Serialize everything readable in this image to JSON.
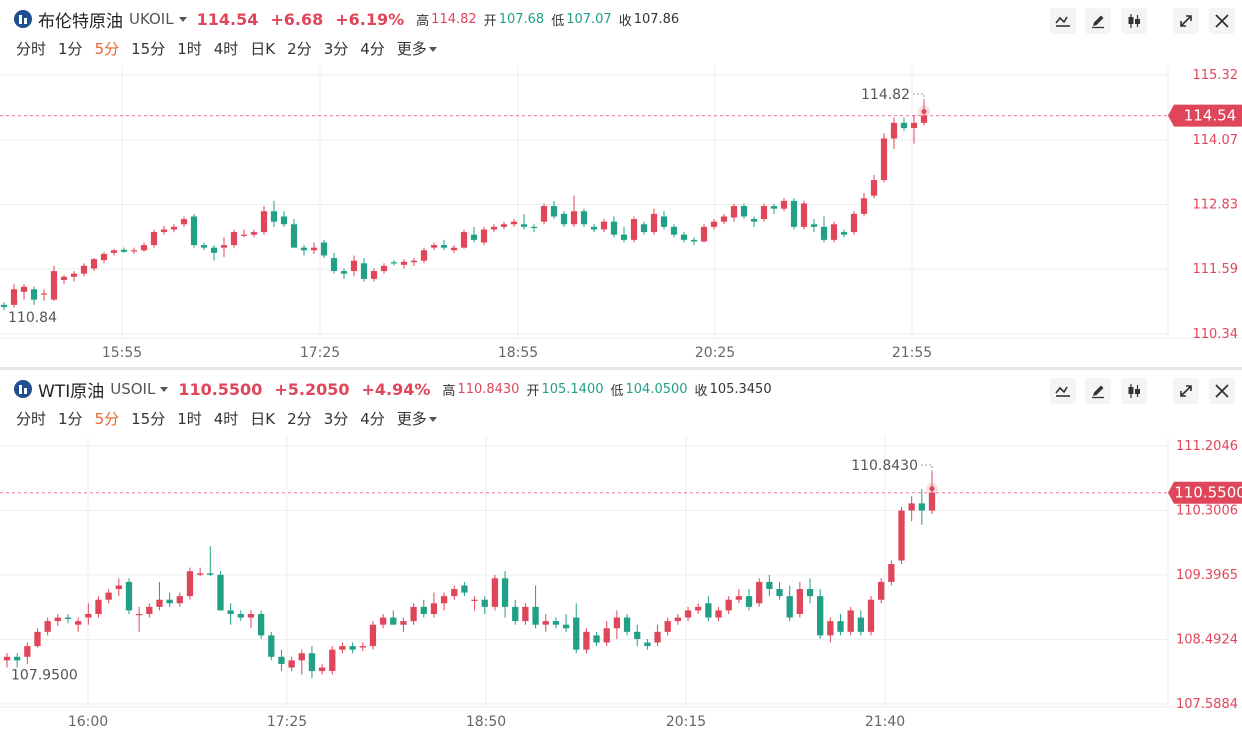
{
  "colors": {
    "up": "#e0465a",
    "down": "#21a087",
    "accent": "#e8652b",
    "grid": "#eeeeee"
  },
  "toolbar_icons": [
    "chart-line-icon",
    "pen-icon",
    "candlestick-icon",
    "expand-icon",
    "close-icon"
  ],
  "timeframes": [
    "分时",
    "1分",
    "5分",
    "15分",
    "1时",
    "4时",
    "日K",
    "2分",
    "3分",
    "4分",
    "更多"
  ],
  "active_timeframe": "5分",
  "panels": [
    {
      "name": "布伦特原油",
      "symbol": "UKOIL",
      "price": "114.54",
      "change": "+6.68",
      "change_pct": "+6.19%",
      "high_label": "高",
      "high": "114.82",
      "open_label": "开",
      "open": "107.68",
      "low_label": "低",
      "low": "107.07",
      "close_label": "收",
      "close": "107.86",
      "y_ticks": [
        "115.32",
        "114.07",
        "112.83",
        "111.59",
        "110.34"
      ],
      "x_ticks": [
        "15:55",
        "17:25",
        "18:55",
        "20:25",
        "21:55"
      ],
      "current_tag": "114.54",
      "high_annotation": "114.82",
      "low_annotation": "110.84"
    },
    {
      "name": "WTI原油",
      "symbol": "USOIL",
      "price": "110.5500",
      "change": "+5.2050",
      "change_pct": "+4.94%",
      "high_label": "高",
      "high": "110.8430",
      "open_label": "开",
      "open": "105.1400",
      "low_label": "低",
      "low": "104.0500",
      "close_label": "收",
      "close": "105.3450",
      "y_ticks": [
        "111.2046",
        "110.3006",
        "109.3965",
        "108.4924",
        "107.5884"
      ],
      "x_ticks": [
        "16:00",
        "17:25",
        "18:50",
        "20:15",
        "21:40"
      ],
      "current_tag": "110.5500",
      "high_annotation": "110.8430",
      "low_annotation": "107.9500"
    }
  ],
  "chart_data": [
    {
      "type": "candlestick",
      "title": "布伦特原油 UKOIL",
      "ylim": [
        110.34,
        115.32
      ],
      "y_ticks": [
        115.32,
        114.07,
        112.83,
        111.59,
        110.34
      ],
      "x_ticks": [
        "15:55",
        "17:25",
        "18:55",
        "20:25",
        "21:55"
      ],
      "current_price": 114.54,
      "ohlc": [
        [
          110.9,
          110.95,
          110.8,
          110.86
        ],
        [
          110.9,
          111.3,
          110.85,
          111.2
        ],
        [
          111.15,
          111.3,
          111.0,
          111.25
        ],
        [
          111.2,
          111.25,
          110.9,
          111.0
        ],
        [
          111.1,
          111.2,
          110.98,
          111.12
        ],
        [
          111.0,
          111.65,
          110.98,
          111.55
        ],
        [
          111.38,
          111.48,
          111.3,
          111.44
        ],
        [
          111.44,
          111.55,
          111.35,
          111.5
        ],
        [
          111.5,
          111.7,
          111.45,
          111.65
        ],
        [
          111.6,
          111.8,
          111.55,
          111.78
        ],
        [
          111.76,
          111.92,
          111.7,
          111.88
        ],
        [
          111.9,
          111.98,
          111.85,
          111.95
        ],
        [
          111.96,
          112.0,
          111.9,
          111.92
        ],
        [
          111.93,
          112.0,
          111.88,
          111.95
        ],
        [
          111.95,
          112.1,
          111.92,
          112.05
        ],
        [
          112.05,
          112.35,
          112.0,
          112.3
        ],
        [
          112.3,
          112.42,
          112.25,
          112.35
        ],
        [
          112.35,
          112.45,
          112.3,
          112.4
        ],
        [
          112.45,
          112.6,
          112.4,
          112.55
        ],
        [
          112.6,
          112.65,
          112.0,
          112.05
        ],
        [
          112.05,
          112.1,
          111.95,
          112.0
        ],
        [
          112.0,
          112.05,
          111.75,
          111.9
        ],
        [
          112.0,
          112.2,
          111.82,
          112.05
        ],
        [
          112.05,
          112.35,
          112.0,
          112.3
        ],
        [
          112.25,
          112.35,
          112.2,
          112.25
        ],
        [
          112.25,
          112.35,
          112.2,
          112.3
        ],
        [
          112.3,
          112.8,
          112.25,
          112.7
        ],
        [
          112.7,
          112.9,
          112.4,
          112.5
        ],
        [
          112.6,
          112.7,
          112.4,
          112.45
        ],
        [
          112.45,
          112.55,
          112.0,
          112.0
        ],
        [
          112.0,
          112.05,
          111.85,
          111.95
        ],
        [
          111.95,
          112.1,
          111.88,
          112.0
        ],
        [
          112.1,
          112.15,
          111.8,
          111.85
        ],
        [
          111.8,
          111.9,
          111.5,
          111.55
        ],
        [
          111.55,
          111.6,
          111.4,
          111.5
        ],
        [
          111.55,
          111.85,
          111.45,
          111.75
        ],
        [
          111.7,
          111.8,
          111.35,
          111.4
        ],
        [
          111.4,
          111.6,
          111.35,
          111.55
        ],
        [
          111.55,
          111.7,
          111.5,
          111.65
        ],
        [
          111.72,
          111.76,
          111.66,
          111.7
        ],
        [
          111.67,
          111.78,
          111.6,
          111.73
        ],
        [
          111.72,
          111.8,
          111.65,
          111.75
        ],
        [
          111.75,
          112.0,
          111.7,
          111.95
        ],
        [
          112.0,
          112.1,
          111.95,
          112.05
        ],
        [
          112.05,
          112.15,
          111.95,
          112.0
        ],
        [
          111.95,
          112.05,
          111.9,
          112.0
        ],
        [
          112.0,
          112.35,
          111.98,
          112.3
        ],
        [
          112.25,
          112.4,
          112.1,
          112.15
        ],
        [
          112.1,
          112.4,
          112.05,
          112.35
        ],
        [
          112.35,
          112.45,
          112.3,
          112.4
        ],
        [
          112.4,
          112.5,
          112.35,
          112.45
        ],
        [
          112.45,
          112.55,
          112.4,
          112.5
        ],
        [
          112.45,
          112.65,
          112.35,
          112.4
        ],
        [
          112.4,
          112.45,
          112.3,
          112.38
        ],
        [
          112.5,
          112.85,
          112.45,
          112.8
        ],
        [
          112.8,
          112.9,
          112.55,
          112.6
        ],
        [
          112.65,
          112.7,
          112.4,
          112.45
        ],
        [
          112.45,
          113.0,
          112.4,
          112.7
        ],
        [
          112.7,
          112.75,
          112.4,
          112.45
        ],
        [
          112.4,
          112.45,
          112.3,
          112.35
        ],
        [
          112.35,
          112.55,
          112.3,
          112.5
        ],
        [
          112.5,
          112.6,
          112.2,
          112.25
        ],
        [
          112.25,
          112.4,
          112.1,
          112.15
        ],
        [
          112.15,
          112.6,
          112.1,
          112.55
        ],
        [
          112.45,
          112.5,
          112.25,
          112.3
        ],
        [
          112.3,
          112.75,
          112.25,
          112.65
        ],
        [
          112.6,
          112.7,
          112.35,
          112.4
        ],
        [
          112.4,
          112.45,
          112.2,
          112.25
        ],
        [
          112.25,
          112.3,
          112.1,
          112.15
        ],
        [
          112.15,
          112.2,
          112.05,
          112.12
        ],
        [
          112.12,
          112.45,
          112.1,
          112.4
        ],
        [
          112.4,
          112.55,
          112.35,
          112.5
        ],
        [
          112.5,
          112.65,
          112.45,
          112.6
        ],
        [
          112.58,
          112.85,
          112.5,
          112.8
        ],
        [
          112.8,
          112.85,
          112.55,
          112.6
        ],
        [
          112.55,
          112.6,
          112.4,
          112.5
        ],
        [
          112.55,
          112.85,
          112.5,
          112.8
        ],
        [
          112.8,
          112.85,
          112.65,
          112.75
        ],
        [
          112.75,
          112.95,
          112.7,
          112.9
        ],
        [
          112.9,
          112.95,
          112.35,
          112.4
        ],
        [
          112.4,
          112.9,
          112.35,
          112.85
        ],
        [
          112.45,
          112.55,
          112.3,
          112.4
        ],
        [
          112.4,
          112.6,
          112.1,
          112.15
        ],
        [
          112.15,
          112.5,
          112.1,
          112.45
        ],
        [
          112.3,
          112.35,
          112.2,
          112.25
        ],
        [
          112.3,
          112.7,
          112.25,
          112.65
        ],
        [
          112.65,
          113.05,
          112.6,
          112.95
        ],
        [
          113.0,
          113.4,
          112.95,
          113.3
        ],
        [
          113.3,
          114.2,
          113.25,
          114.1
        ],
        [
          114.1,
          114.5,
          113.9,
          114.4
        ],
        [
          114.4,
          114.5,
          114.25,
          114.3
        ],
        [
          114.3,
          114.55,
          114.0,
          114.4
        ],
        [
          114.4,
          114.82,
          114.35,
          114.54
        ]
      ]
    },
    {
      "type": "candlestick",
      "title": "WTI原油 USOIL",
      "ylim": [
        107.5884,
        111.2046
      ],
      "y_ticks": [
        111.2046,
        110.3006,
        109.3965,
        108.4924,
        107.5884
      ],
      "x_ticks": [
        "16:00",
        "17:25",
        "18:50",
        "20:15",
        "21:40"
      ],
      "current_price": 110.55,
      "ohlc": [
        [
          108.2,
          108.3,
          108.1,
          108.25
        ],
        [
          108.25,
          108.3,
          108.1,
          108.2
        ],
        [
          108.25,
          108.45,
          108.15,
          108.4
        ],
        [
          108.4,
          108.65,
          108.38,
          108.6
        ],
        [
          108.6,
          108.8,
          108.55,
          108.75
        ],
        [
          108.75,
          108.85,
          108.68,
          108.8
        ],
        [
          108.8,
          108.85,
          108.72,
          108.78
        ],
        [
          108.7,
          108.8,
          108.6,
          108.75
        ],
        [
          108.8,
          109.0,
          108.7,
          108.85
        ],
        [
          108.85,
          109.1,
          108.8,
          109.05
        ],
        [
          109.05,
          109.2,
          109.0,
          109.15
        ],
        [
          109.2,
          109.35,
          109.1,
          109.25
        ],
        [
          109.3,
          109.35,
          108.85,
          108.9
        ],
        [
          108.85,
          108.95,
          108.6,
          108.85
        ],
        [
          108.85,
          109.0,
          108.8,
          108.95
        ],
        [
          108.95,
          109.3,
          108.9,
          109.05
        ],
        [
          109.05,
          109.15,
          108.95,
          109.0
        ],
        [
          109.0,
          109.15,
          108.95,
          109.1
        ],
        [
          109.1,
          109.5,
          109.05,
          109.45
        ],
        [
          109.4,
          109.5,
          109.38,
          109.42
        ],
        [
          109.42,
          109.8,
          109.38,
          109.4
        ],
        [
          109.4,
          109.45,
          108.9,
          108.9
        ],
        [
          108.9,
          109.0,
          108.7,
          108.85
        ],
        [
          108.85,
          108.9,
          108.75,
          108.8
        ],
        [
          108.8,
          108.9,
          108.65,
          108.85
        ],
        [
          108.85,
          108.9,
          108.5,
          108.55
        ],
        [
          108.55,
          108.6,
          108.2,
          108.25
        ],
        [
          108.25,
          108.35,
          108.05,
          108.15
        ],
        [
          108.1,
          108.25,
          108.05,
          108.2
        ],
        [
          108.2,
          108.35,
          108.0,
          108.3
        ],
        [
          108.3,
          108.4,
          107.95,
          108.05
        ],
        [
          108.05,
          108.15,
          108.0,
          108.1
        ],
        [
          108.05,
          108.4,
          108.0,
          108.35
        ],
        [
          108.35,
          108.45,
          108.3,
          108.4
        ],
        [
          108.4,
          108.45,
          108.3,
          108.35
        ],
        [
          108.38,
          108.45,
          108.33,
          108.4
        ],
        [
          108.4,
          108.75,
          108.35,
          108.7
        ],
        [
          108.7,
          108.85,
          108.65,
          108.8
        ],
        [
          108.8,
          108.9,
          108.7,
          108.7
        ],
        [
          108.7,
          108.8,
          108.6,
          108.75
        ],
        [
          108.75,
          109.0,
          108.7,
          108.95
        ],
        [
          108.95,
          109.05,
          108.8,
          108.85
        ],
        [
          108.85,
          109.15,
          108.8,
          109.0
        ],
        [
          109.0,
          109.15,
          108.9,
          109.1
        ],
        [
          109.1,
          109.25,
          109.05,
          109.2
        ],
        [
          109.25,
          109.3,
          109.1,
          109.15
        ],
        [
          109.05,
          109.1,
          108.9,
          109.05
        ],
        [
          109.05,
          109.1,
          108.85,
          108.95
        ],
        [
          108.95,
          109.4,
          108.9,
          109.35
        ],
        [
          109.35,
          109.45,
          108.8,
          108.95
        ],
        [
          108.95,
          109.05,
          108.7,
          108.75
        ],
        [
          108.75,
          109.0,
          108.7,
          108.95
        ],
        [
          108.95,
          109.25,
          108.65,
          108.7
        ],
        [
          108.7,
          108.85,
          108.6,
          108.75
        ],
        [
          108.75,
          108.8,
          108.65,
          108.7
        ],
        [
          108.7,
          108.85,
          108.6,
          108.65
        ],
        [
          108.8,
          109.0,
          108.3,
          108.35
        ],
        [
          108.35,
          108.65,
          108.3,
          108.6
        ],
        [
          108.55,
          108.6,
          108.4,
          108.45
        ],
        [
          108.45,
          108.75,
          108.4,
          108.65
        ],
        [
          108.65,
          108.9,
          108.5,
          108.8
        ],
        [
          108.8,
          108.85,
          108.55,
          108.6
        ],
        [
          108.6,
          108.7,
          108.4,
          108.5
        ],
        [
          108.45,
          108.5,
          108.35,
          108.4
        ],
        [
          108.45,
          108.7,
          108.4,
          108.6
        ],
        [
          108.6,
          108.8,
          108.55,
          108.75
        ],
        [
          108.75,
          108.85,
          108.7,
          108.8
        ],
        [
          108.8,
          108.95,
          108.75,
          108.9
        ],
        [
          108.9,
          109.0,
          108.85,
          108.95
        ],
        [
          109.0,
          109.1,
          108.75,
          108.8
        ],
        [
          108.8,
          108.95,
          108.75,
          108.9
        ],
        [
          108.9,
          109.1,
          108.85,
          109.05
        ],
        [
          109.05,
          109.2,
          109.0,
          109.1
        ],
        [
          109.1,
          109.2,
          108.9,
          108.95
        ],
        [
          109.0,
          109.35,
          108.95,
          109.3
        ],
        [
          109.3,
          109.4,
          109.1,
          109.2
        ],
        [
          109.2,
          109.3,
          109.05,
          109.1
        ],
        [
          109.1,
          109.25,
          108.75,
          108.8
        ],
        [
          108.85,
          109.3,
          108.8,
          109.2
        ],
        [
          109.2,
          109.35,
          109.0,
          109.1
        ],
        [
          109.1,
          109.2,
          108.5,
          108.55
        ],
        [
          108.55,
          108.8,
          108.45,
          108.75
        ],
        [
          108.75,
          108.85,
          108.55,
          108.6
        ],
        [
          108.6,
          108.95,
          108.55,
          108.9
        ],
        [
          108.8,
          108.9,
          108.55,
          108.6
        ],
        [
          108.6,
          109.1,
          108.55,
          109.05
        ],
        [
          109.05,
          109.35,
          109.0,
          109.3
        ],
        [
          109.3,
          109.6,
          109.25,
          109.55
        ],
        [
          109.6,
          110.35,
          109.55,
          110.3
        ],
        [
          110.3,
          110.5,
          110.15,
          110.4
        ],
        [
          110.4,
          110.6,
          110.1,
          110.3
        ],
        [
          110.3,
          110.84,
          110.25,
          110.55
        ]
      ]
    }
  ]
}
